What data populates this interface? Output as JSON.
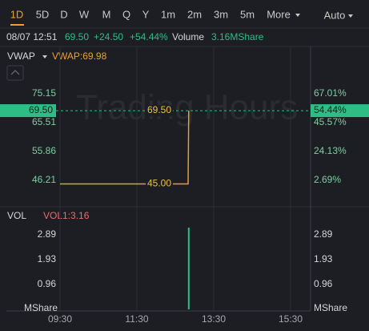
{
  "toolbar": {
    "intervals": [
      "1D",
      "5D",
      "D",
      "W",
      "M",
      "Q",
      "Y",
      "1m",
      "2m",
      "3m",
      "5m"
    ],
    "more": "More",
    "mode": "Auto"
  },
  "quote": {
    "time": "08/07 12:51",
    "price": "69.50",
    "change": "+24.50",
    "change_pct": "+54.44%",
    "volume_label": "Volume",
    "volume": "3.16MShare"
  },
  "chart_data": [
    {
      "type": "line",
      "indicator": "VWAP",
      "indicator_label": "VWAP:69.98",
      "watermark": "Trading Hours",
      "x": [
        "09:30",
        "12:50",
        "12:51"
      ],
      "values": [
        45,
        45,
        69.5
      ],
      "color": "#e0a034",
      "price_labels": [
        {
          "value": 69.5,
          "label": "69.50"
        },
        {
          "value": 45,
          "label": "45.00"
        }
      ],
      "last_price": {
        "value": 69.5,
        "label": "69.50"
      },
      "last_change": {
        "value": 54.44,
        "label": "54.44%"
      },
      "ylim": [
        38.17,
        79.7
      ],
      "yticks": [
        75.15,
        65.51,
        55.86,
        46.21
      ],
      "y2lim": [
        -15.18,
        77.11
      ],
      "y2ticks": [
        {
          "value": 67.01,
          "label": "67.01%"
        },
        {
          "value": 45.57,
          "label": "45.57%"
        },
        {
          "value": 24.13,
          "label": "24.13%"
        },
        {
          "value": 2.69,
          "label": "2.69%"
        }
      ],
      "xlim": [
        "09:30",
        "16:00"
      ],
      "xticks": [
        "09:30",
        "11:30",
        "13:30",
        "15:30"
      ]
    },
    {
      "type": "bar",
      "indicator": "VOL",
      "indicator_label": "VOL1:3.16",
      "x": [
        "12:51"
      ],
      "values": [
        3.16
      ],
      "color": "#2ebd85",
      "ylim": [
        0,
        3.75
      ],
      "yticks": [
        2.89,
        1.93,
        0.96
      ],
      "y_unit": "MShare",
      "xlim": [
        "09:30",
        "16:00"
      ],
      "xticks": [
        "09:30",
        "11:30",
        "13:30",
        "15:30"
      ]
    }
  ]
}
